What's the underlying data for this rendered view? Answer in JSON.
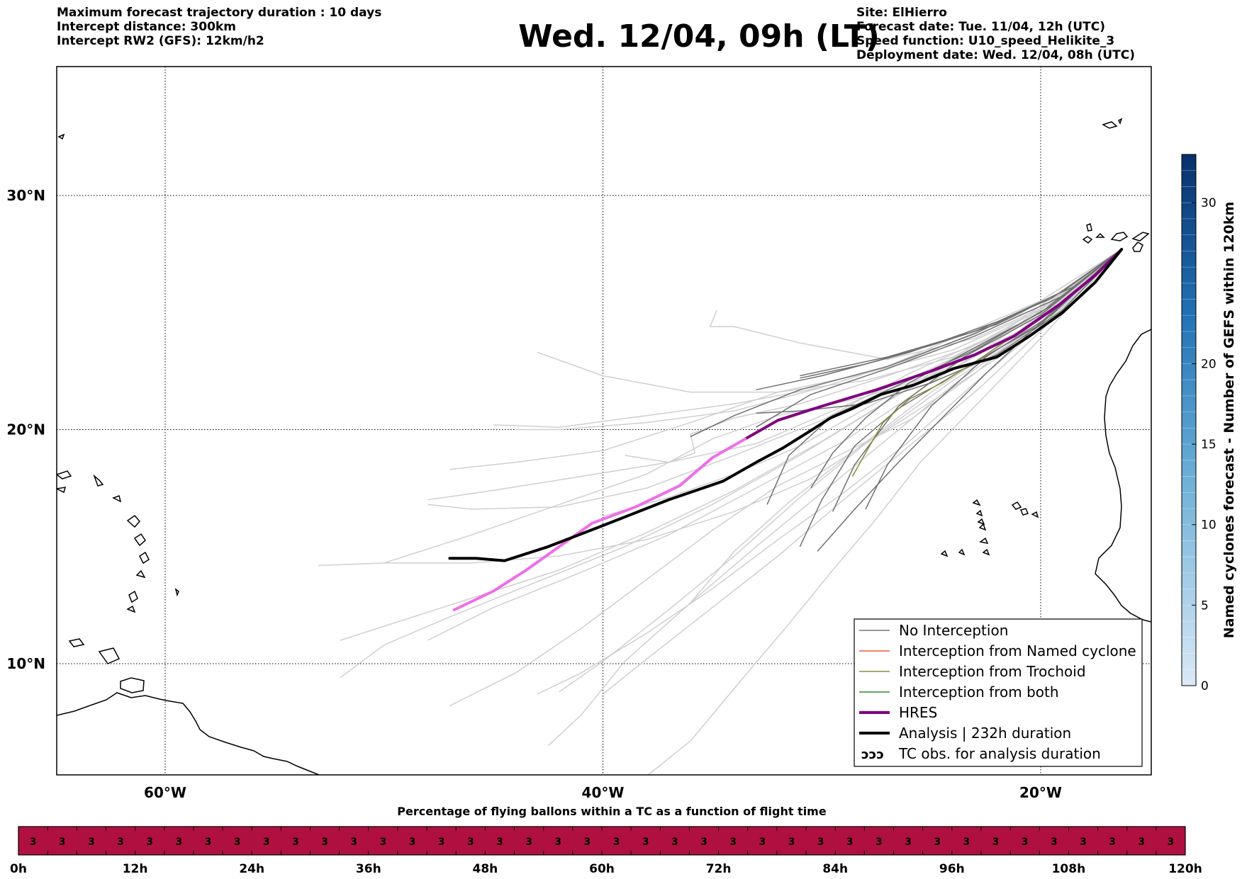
{
  "header": {
    "left": [
      "Maximum forecast trajectory duration : 10 days",
      "Intercept distance: 300km",
      "Intercept RW2 (GFS):  12km/h2"
    ],
    "title": "Wed. 12/04, 09h (LT)",
    "right": [
      "Site: ElHierro",
      "Forecast date: Tue. 11/04, 12h (UTC)",
      "Speed function: U10_speed_Helikite_3",
      "Deployment date: Wed. 12/04, 08h (UTC)"
    ]
  },
  "map": {
    "lon_range": [
      -65,
      15
    ],
    "lat_range": [
      5,
      35
    ],
    "lon_ticks": [
      {
        "v": -60,
        "label": "60°W"
      },
      {
        "v": -40,
        "label": "40°W"
      },
      {
        "v": -20,
        "label": "20°W"
      }
    ],
    "lat_ticks": [
      {
        "v": 10,
        "label": "10°N"
      },
      {
        "v": 20,
        "label": "20°N"
      },
      {
        "v": 30,
        "label": "30°N"
      }
    ],
    "grid": true,
    "origin": {
      "lon": -16.3,
      "lat": 27.7
    }
  },
  "legend": {
    "placement": "lower-right",
    "items": [
      {
        "label": "No Interception",
        "color": "#777777",
        "style": "thin"
      },
      {
        "label": "Interception from Named cyclone",
        "color": "#e0603a",
        "style": "thin"
      },
      {
        "label": "Interception from Trochoid",
        "color": "#8a8a3a",
        "style": "thin"
      },
      {
        "label": "Interception from both",
        "color": "#2e8b2e",
        "style": "thin"
      },
      {
        "label": "HRES",
        "color": "#800080",
        "style": "thick"
      },
      {
        "label": "Analysis | 232h duration",
        "color": "#000000",
        "style": "thick"
      },
      {
        "label": "TC obs. for analysis duration",
        "color": "#000000",
        "style": "symbol"
      }
    ]
  },
  "colorbar": {
    "label": "Named cyclones forecast - Number of GEFS within 120km",
    "ticks": [
      0,
      5,
      10,
      15,
      20,
      30
    ],
    "range": [
      0,
      33
    ],
    "color_low": "#dbe9f6",
    "color_high": "#08306b"
  },
  "timeline": {
    "title": "Percentage of flying ballons within a TC as a function of flight time",
    "color": "#b01040",
    "cell_value": "3",
    "cell_count": 40,
    "tick_labels": [
      "0h",
      "12h",
      "24h",
      "36h",
      "48h",
      "60h",
      "72h",
      "84h",
      "96h",
      "108h",
      "120h"
    ]
  },
  "trajectories": {
    "hres": [
      [
        -16.3,
        27.7
      ],
      [
        -17.5,
        26.6
      ],
      [
        -19.2,
        25.3
      ],
      [
        -21.2,
        24.0
      ],
      [
        -23.0,
        23.2
      ],
      [
        -25.0,
        22.5
      ],
      [
        -27.5,
        21.7
      ],
      [
        -30.0,
        21.0
      ],
      [
        -32.0,
        20.4
      ],
      [
        -33.5,
        19.6
      ],
      [
        -35.0,
        18.8
      ],
      [
        -36.5,
        17.6
      ],
      [
        -38.5,
        16.7
      ],
      [
        -40.5,
        16.0
      ],
      [
        -42.0,
        15.0
      ],
      [
        -43.5,
        14.0
      ],
      [
        -45.0,
        13.1
      ],
      [
        -46.8,
        12.3
      ]
    ],
    "hres_light_from_index": 9,
    "analysis": [
      [
        -16.3,
        27.7
      ],
      [
        -17.5,
        26.3
      ],
      [
        -19.0,
        25.0
      ],
      [
        -20.5,
        24.0
      ],
      [
        -22.0,
        23.1
      ],
      [
        -24.0,
        22.6
      ],
      [
        -25.8,
        21.9
      ],
      [
        -27.3,
        21.5
      ],
      [
        -28.6,
        20.9
      ],
      [
        -29.6,
        20.5
      ],
      [
        -30.6,
        19.9
      ],
      [
        -31.8,
        19.2
      ],
      [
        -33.0,
        18.6
      ],
      [
        -34.5,
        17.8
      ],
      [
        -37.0,
        17.0
      ],
      [
        -40.0,
        15.9
      ],
      [
        -42.5,
        15.0
      ],
      [
        -44.5,
        14.4
      ],
      [
        -45.8,
        14.5
      ],
      [
        -47.0,
        14.5
      ]
    ],
    "ensemble_members": [
      [
        [
          -16.3,
          27.7
        ],
        [
          -20,
          25.1
        ],
        [
          -24,
          23.4
        ],
        [
          -28,
          22.4
        ],
        [
          -32,
          21.6
        ],
        [
          -36,
          20.3
        ],
        [
          -40,
          19.1
        ],
        [
          -44,
          18.6
        ],
        [
          -47,
          18.3
        ]
      ],
      [
        [
          -16.3,
          27.7
        ],
        [
          -20,
          24.7
        ],
        [
          -24,
          22.6
        ],
        [
          -28,
          21.4
        ],
        [
          -32,
          20.6
        ],
        [
          -35,
          19.6
        ],
        [
          -38,
          18.1
        ],
        [
          -42,
          16.8
        ],
        [
          -46,
          15.5
        ],
        [
          -50,
          14.3
        ]
      ],
      [
        [
          -16.3,
          27.7
        ],
        [
          -20,
          24.8
        ],
        [
          -23,
          22.4
        ],
        [
          -26,
          20.4
        ],
        [
          -29,
          19.0
        ],
        [
          -32,
          17.6
        ],
        [
          -35,
          15.7
        ],
        [
          -38,
          13.6
        ],
        [
          -41,
          11.5
        ],
        [
          -44,
          9.6
        ],
        [
          -47,
          8.2
        ]
      ],
      [
        [
          -16.3,
          27.7
        ],
        [
          -20,
          24.4
        ],
        [
          -23,
          22.0
        ],
        [
          -26,
          19.5
        ],
        [
          -29,
          17.3
        ],
        [
          -32,
          15.3
        ],
        [
          -35,
          13.2
        ],
        [
          -38,
          11.3
        ],
        [
          -41,
          9.6
        ],
        [
          -43,
          8.7
        ]
      ],
      [
        [
          -16.3,
          27.7
        ],
        [
          -20,
          24.5
        ],
        [
          -24,
          22.1
        ],
        [
          -28,
          19.4
        ],
        [
          -31,
          17.1
        ],
        [
          -34,
          14.6
        ],
        [
          -37,
          12.3
        ],
        [
          -40,
          10.1
        ],
        [
          -42,
          8.8
        ]
      ],
      [
        [
          -16.3,
          27.7
        ],
        [
          -19.5,
          25.4
        ],
        [
          -24,
          23.1
        ],
        [
          -28,
          22.1
        ],
        [
          -32,
          21.6
        ],
        [
          -36,
          21.6
        ],
        [
          -40,
          22.3
        ],
        [
          -43,
          23.3
        ]
      ],
      [
        [
          -16.3,
          27.7
        ],
        [
          -20,
          25.5
        ],
        [
          -24,
          23.9
        ],
        [
          -27,
          22.7
        ],
        [
          -30,
          21.8
        ],
        [
          -34,
          20.8
        ],
        [
          -38,
          20.3
        ],
        [
          -42,
          20.0
        ],
        [
          -44,
          20.0
        ]
      ],
      [
        [
          -16.3,
          27.7
        ],
        [
          -21,
          24.5
        ],
        [
          -26,
          22.4
        ],
        [
          -30,
          20.4
        ],
        [
          -34,
          18.9
        ],
        [
          -38,
          17.5
        ],
        [
          -42,
          16.7
        ],
        [
          -46,
          16.6
        ],
        [
          -48,
          16.8
        ]
      ],
      [
        [
          -16.3,
          27.7
        ],
        [
          -20,
          24.6
        ],
        [
          -24,
          21.9
        ],
        [
          -27,
          19.6
        ],
        [
          -30,
          17.3
        ],
        [
          -33,
          15.0
        ],
        [
          -36,
          12.6
        ],
        [
          -39,
          10.1
        ],
        [
          -41,
          7.8
        ],
        [
          -42.5,
          6.5
        ]
      ],
      [
        [
          -16.3,
          27.7
        ],
        [
          -22,
          24.0
        ],
        [
          -27,
          21.2
        ],
        [
          -31,
          18.9
        ],
        [
          -35,
          16.8
        ],
        [
          -39,
          15.0
        ],
        [
          -43,
          13.5
        ],
        [
          -47,
          12.0
        ],
        [
          -50,
          10.8
        ],
        [
          -52,
          9.4
        ]
      ],
      [
        [
          -16.3,
          27.7
        ],
        [
          -20,
          24.9
        ],
        [
          -25,
          22.6
        ],
        [
          -30,
          20.6
        ],
        [
          -33,
          19.4
        ],
        [
          -37,
          18.6
        ],
        [
          -41,
          18.0
        ],
        [
          -45,
          17.4
        ],
        [
          -48,
          17.0
        ]
      ],
      [
        [
          -16.3,
          27.7
        ],
        [
          -21,
          24.4
        ],
        [
          -25,
          22.0
        ],
        [
          -29,
          19.5
        ],
        [
          -33,
          17.5
        ],
        [
          -37,
          15.5
        ],
        [
          -41,
          13.9
        ],
        [
          -45,
          12.4
        ],
        [
          -48,
          11.0
        ]
      ],
      [
        [
          -16.3,
          27.7
        ],
        [
          -20,
          24.2
        ],
        [
          -23,
          21.6
        ],
        [
          -26,
          19.3
        ],
        [
          -29,
          17.0
        ],
        [
          -32,
          14.6
        ],
        [
          -35,
          12.4
        ],
        [
          -38,
          10.2
        ],
        [
          -40,
          8.7
        ]
      ],
      [
        [
          -16.3,
          27.7
        ],
        [
          -20,
          24.3
        ],
        [
          -24,
          21.8
        ],
        [
          -27.5,
          19.7
        ],
        [
          -30.5,
          17.9
        ],
        [
          -34,
          16.5
        ],
        [
          -38,
          15.3
        ],
        [
          -42,
          14.6
        ],
        [
          -46,
          14.3
        ],
        [
          -50,
          14.3
        ],
        [
          -53,
          14.2
        ]
      ],
      [
        [
          -16.3,
          27.7
        ],
        [
          -19,
          25.3
        ],
        [
          -23,
          23.6
        ],
        [
          -27,
          22.3
        ],
        [
          -31,
          21.1
        ],
        [
          -34,
          20.5
        ],
        [
          -36,
          19.8
        ],
        [
          -35.8,
          19.0
        ],
        [
          -37,
          18.6
        ],
        [
          -39,
          18.9
        ]
      ],
      [
        [
          -16.3,
          27.7
        ],
        [
          -20,
          25.0
        ],
        [
          -24,
          22.9
        ],
        [
          -28,
          20.9
        ],
        [
          -31,
          19.3
        ],
        [
          -34,
          18.1
        ],
        [
          -37,
          17.1
        ],
        [
          -40,
          16.3
        ]
      ],
      [
        [
          -16.3,
          27.7
        ],
        [
          -21,
          24.1
        ],
        [
          -25,
          21.6
        ],
        [
          -28.5,
          19.1
        ],
        [
          -31.5,
          16.9
        ],
        [
          -34,
          14.8
        ],
        [
          -36,
          12.6
        ]
      ],
      [
        [
          -16.3,
          27.7
        ],
        [
          -20,
          23.9
        ],
        [
          -23,
          21.0
        ],
        [
          -25.5,
          18.6
        ],
        [
          -27.5,
          16.2
        ],
        [
          -29.5,
          14.0
        ],
        [
          -31.5,
          11.7
        ],
        [
          -33.5,
          9.5
        ],
        [
          -36,
          6.7
        ],
        [
          -38,
          5.2
        ]
      ],
      [
        [
          -16.3,
          27.7
        ],
        [
          -21,
          24.9
        ],
        [
          -26,
          23.0
        ],
        [
          -30,
          21.8
        ],
        [
          -34,
          21.1
        ],
        [
          -38,
          20.6
        ],
        [
          -42,
          20.1
        ],
        [
          -45,
          20.2
        ]
      ],
      [
        [
          -16.3,
          27.7
        ],
        [
          -21,
          24.2
        ],
        [
          -26,
          21.8
        ],
        [
          -30,
          19.5
        ],
        [
          -34,
          17.4
        ],
        [
          -38,
          15.6
        ],
        [
          -42,
          14.0
        ],
        [
          -46,
          12.8
        ],
        [
          -50,
          11.6
        ],
        [
          -52,
          11.0
        ]
      ],
      [
        [
          -16.3,
          27.7
        ],
        [
          -19,
          25.6
        ],
        [
          -23,
          23.9
        ],
        [
          -27,
          23.0
        ],
        [
          -31,
          23.7
        ],
        [
          -34,
          24.4
        ],
        [
          -35.1,
          24.4
        ],
        [
          -34.8,
          25.1
        ]
      ],
      [
        [
          -16.3,
          27.7
        ],
        [
          -19,
          25.9
        ],
        [
          -23,
          24.1
        ],
        [
          -27,
          22.7
        ],
        [
          -31,
          21.7
        ],
        [
          -34,
          20.6
        ],
        [
          -36,
          19.7
        ]
      ],
      [
        [
          -16.3,
          27.7
        ],
        [
          -19,
          25.7
        ],
        [
          -23,
          24.0
        ],
        [
          -27,
          22.6
        ],
        [
          -30.5,
          21.5
        ],
        [
          -33,
          20.1
        ]
      ],
      [
        [
          -16.3,
          27.7
        ],
        [
          -19.5,
          25.3
        ],
        [
          -23,
          23.4
        ],
        [
          -26.5,
          21.9
        ],
        [
          -29.5,
          20.6
        ],
        [
          -31.5,
          18.9
        ],
        [
          -32.5,
          16.8
        ]
      ],
      [
        [
          -16.3,
          27.7
        ],
        [
          -20,
          24.9
        ],
        [
          -23.5,
          23.1
        ],
        [
          -26.5,
          21.0
        ],
        [
          -28.5,
          18.5
        ],
        [
          -29.5,
          16.5
        ]
      ],
      [
        [
          -16.3,
          27.7
        ],
        [
          -20,
          24.5
        ],
        [
          -23.5,
          22.6
        ],
        [
          -26.5,
          20.9
        ],
        [
          -28.5,
          19.3
        ],
        [
          -30,
          17.0
        ],
        [
          -31,
          15.0
        ]
      ],
      [
        [
          -16.3,
          27.7
        ],
        [
          -19.5,
          25.0
        ],
        [
          -22.5,
          22.4
        ],
        [
          -24.5,
          20.5
        ],
        [
          -26.5,
          18.6
        ],
        [
          -28.5,
          16.6
        ],
        [
          -30.2,
          14.8
        ]
      ],
      [
        [
          -16.3,
          27.7
        ],
        [
          -19,
          25.1
        ],
        [
          -22,
          23.2
        ],
        [
          -25,
          22.0
        ],
        [
          -28,
          21.1
        ],
        [
          -31,
          20.8
        ],
        [
          -33,
          20.7
        ]
      ],
      [
        [
          -16.3,
          27.7
        ],
        [
          -18.5,
          26.1
        ],
        [
          -22,
          24.6
        ],
        [
          -26,
          23.3
        ],
        [
          -30,
          22.3
        ],
        [
          -33,
          21.7
        ]
      ],
      [
        [
          -16.3,
          27.7
        ],
        [
          -19.5,
          25.6
        ],
        [
          -23,
          24.2
        ],
        [
          -27,
          23.1
        ],
        [
          -31,
          22.3
        ]
      ],
      [
        [
          -16.3,
          27.7
        ],
        [
          -20,
          25.0
        ],
        [
          -23,
          23.5
        ],
        [
          -26,
          22.0
        ],
        [
          -28,
          20.5
        ],
        [
          -29.5,
          19.0
        ],
        [
          -30.5,
          17.5
        ]
      ],
      [
        [
          -16.3,
          27.7
        ],
        [
          -19.5,
          24.9
        ],
        [
          -22.5,
          23.1
        ],
        [
          -25,
          21.0
        ],
        [
          -27,
          18.5
        ],
        [
          -28,
          16.6
        ]
      ],
      [
        [
          -16.3,
          27.7
        ],
        [
          -19,
          25.9
        ],
        [
          -22,
          24.5
        ],
        [
          -25,
          23.6
        ],
        [
          -28,
          22.8
        ],
        [
          -31,
          22.2
        ]
      ]
    ],
    "trochoid": [
      [
        -16.3,
        27.7
      ],
      [
        -18.5,
        25.8
      ],
      [
        -20.5,
        24.5
      ],
      [
        -22.5,
        23.2
      ],
      [
        -24.5,
        22.0
      ],
      [
        -26,
        21.3
      ],
      [
        -27.2,
        20.3
      ],
      [
        -28.0,
        19.0
      ],
      [
        -28.6,
        18.0
      ]
    ],
    "faint_count": 21
  }
}
